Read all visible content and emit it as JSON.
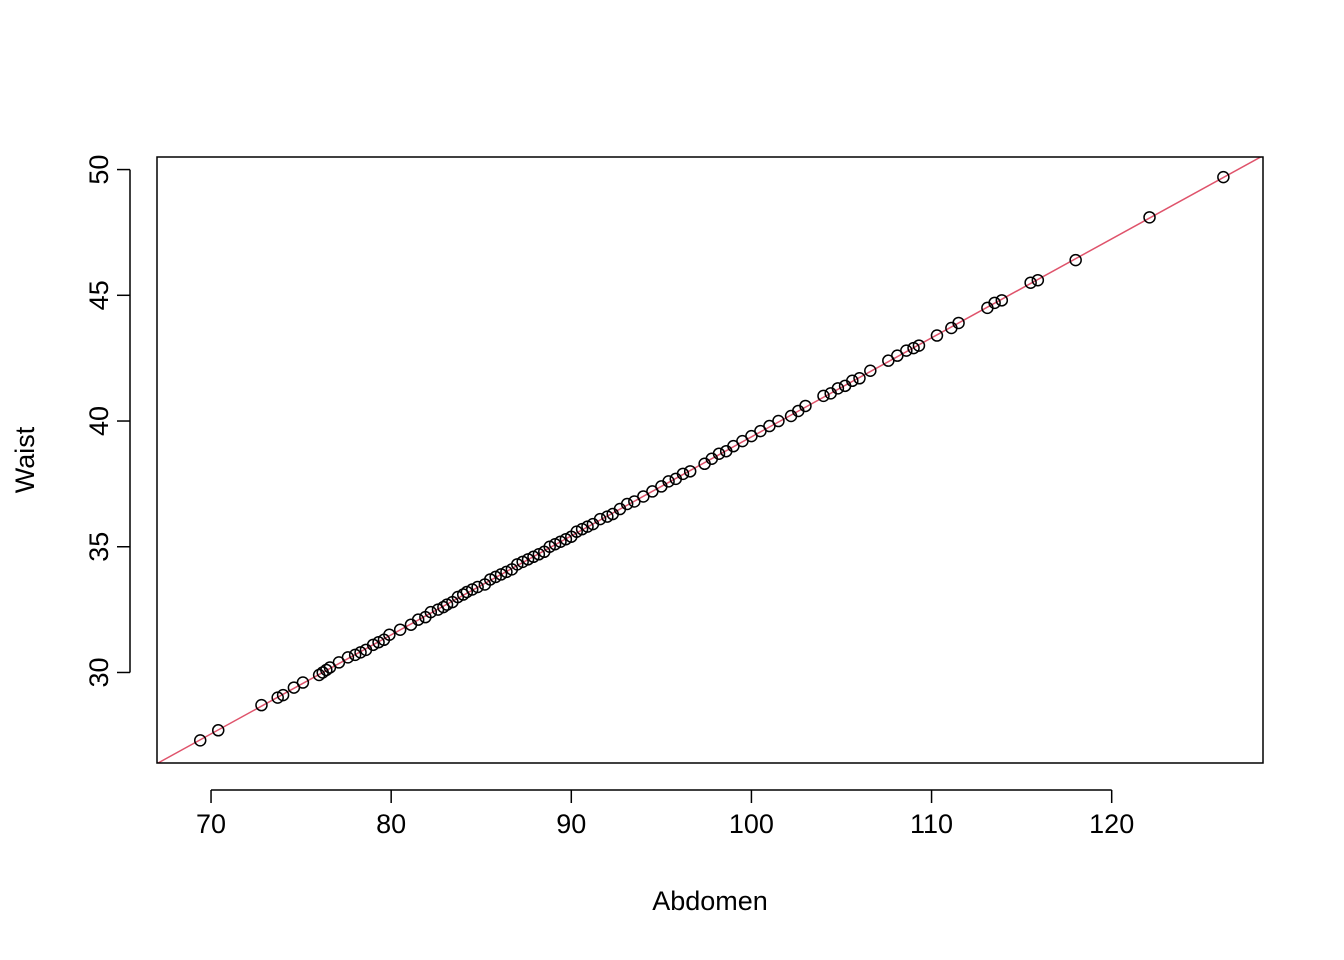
{
  "chart_data": {
    "type": "scatter",
    "title": "",
    "xlabel": "Abdomen",
    "ylabel": "Waist",
    "xlim": [
      67.0,
      128.4
    ],
    "ylim": [
      26.4,
      50.5
    ],
    "x_ticks": [
      70,
      80,
      90,
      100,
      110,
      120
    ],
    "y_ticks": [
      30,
      35,
      40,
      45,
      50
    ],
    "x_tick_labels": [
      "70",
      "80",
      "90",
      "100",
      "110",
      "120"
    ],
    "y_tick_labels": [
      "30",
      "35",
      "40",
      "45",
      "50"
    ],
    "grid": false,
    "legend": "none",
    "colors": {
      "points": "#000000",
      "fit_line": "#DF536B",
      "frame": "#000000"
    },
    "series": [
      {
        "values": [
          [
            69.4,
            27.3
          ],
          [
            70.4,
            27.7
          ],
          [
            72.8,
            28.7
          ],
          [
            73.7,
            29.0
          ],
          [
            74.0,
            29.1
          ],
          [
            74.6,
            29.4
          ],
          [
            75.1,
            29.6
          ],
          [
            76.0,
            29.9
          ],
          [
            76.2,
            30.0
          ],
          [
            76.4,
            30.1
          ],
          [
            76.6,
            30.2
          ],
          [
            77.1,
            30.4
          ],
          [
            77.6,
            30.6
          ],
          [
            78.0,
            30.7
          ],
          [
            78.3,
            30.8
          ],
          [
            78.6,
            30.9
          ],
          [
            79.0,
            31.1
          ],
          [
            79.3,
            31.2
          ],
          [
            79.6,
            31.3
          ],
          [
            79.9,
            31.5
          ],
          [
            80.5,
            31.7
          ],
          [
            81.1,
            31.9
          ],
          [
            81.5,
            32.1
          ],
          [
            81.9,
            32.2
          ],
          [
            82.2,
            32.4
          ],
          [
            82.6,
            32.5
          ],
          [
            82.9,
            32.6
          ],
          [
            83.1,
            32.7
          ],
          [
            83.4,
            32.8
          ],
          [
            83.7,
            33.0
          ],
          [
            84.0,
            33.1
          ],
          [
            84.2,
            33.2
          ],
          [
            84.5,
            33.3
          ],
          [
            84.8,
            33.4
          ],
          [
            85.2,
            33.5
          ],
          [
            85.5,
            33.7
          ],
          [
            85.8,
            33.8
          ],
          [
            86.1,
            33.9
          ],
          [
            86.4,
            34.0
          ],
          [
            86.7,
            34.1
          ],
          [
            87.0,
            34.3
          ],
          [
            87.3,
            34.4
          ],
          [
            87.6,
            34.5
          ],
          [
            87.9,
            34.6
          ],
          [
            88.2,
            34.7
          ],
          [
            88.5,
            34.8
          ],
          [
            88.8,
            35.0
          ],
          [
            89.1,
            35.1
          ],
          [
            89.4,
            35.2
          ],
          [
            89.7,
            35.3
          ],
          [
            90.0,
            35.4
          ],
          [
            90.3,
            35.6
          ],
          [
            90.6,
            35.7
          ],
          [
            90.9,
            35.8
          ],
          [
            91.2,
            35.9
          ],
          [
            91.6,
            36.1
          ],
          [
            92.0,
            36.2
          ],
          [
            92.3,
            36.3
          ],
          [
            92.7,
            36.5
          ],
          [
            93.1,
            36.7
          ],
          [
            93.5,
            36.8
          ],
          [
            94.0,
            37.0
          ],
          [
            94.5,
            37.2
          ],
          [
            95.0,
            37.4
          ],
          [
            95.4,
            37.6
          ],
          [
            95.8,
            37.7
          ],
          [
            96.2,
            37.9
          ],
          [
            96.6,
            38.0
          ],
          [
            97.4,
            38.3
          ],
          [
            97.8,
            38.5
          ],
          [
            98.2,
            38.7
          ],
          [
            98.6,
            38.8
          ],
          [
            99.0,
            39.0
          ],
          [
            99.5,
            39.2
          ],
          [
            100.0,
            39.4
          ],
          [
            100.5,
            39.6
          ],
          [
            101.0,
            39.8
          ],
          [
            101.5,
            40.0
          ],
          [
            102.2,
            40.2
          ],
          [
            102.6,
            40.4
          ],
          [
            103.0,
            40.6
          ],
          [
            104.0,
            41.0
          ],
          [
            104.4,
            41.1
          ],
          [
            104.8,
            41.3
          ],
          [
            105.2,
            41.4
          ],
          [
            105.6,
            41.6
          ],
          [
            106.0,
            41.7
          ],
          [
            106.6,
            42.0
          ],
          [
            107.6,
            42.4
          ],
          [
            108.1,
            42.6
          ],
          [
            108.6,
            42.8
          ],
          [
            109.0,
            42.9
          ],
          [
            109.3,
            43.0
          ],
          [
            110.3,
            43.4
          ],
          [
            111.1,
            43.7
          ],
          [
            111.5,
            43.9
          ],
          [
            113.1,
            44.5
          ],
          [
            113.5,
            44.7
          ],
          [
            113.9,
            44.8
          ],
          [
            115.5,
            45.5
          ],
          [
            115.9,
            45.6
          ],
          [
            118.0,
            46.4
          ],
          [
            122.1,
            48.1
          ],
          [
            126.2,
            49.7
          ]
        ]
      }
    ],
    "fit_line": {
      "intercept": 0.0,
      "slope": 0.3937
    }
  }
}
